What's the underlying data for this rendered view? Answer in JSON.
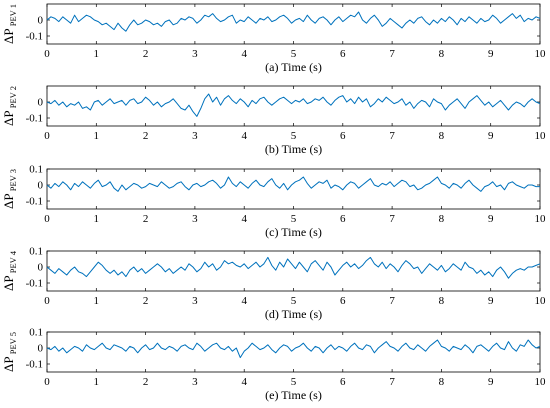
{
  "chart_data": [
    {
      "type": "line",
      "panel": "PEV1",
      "caption": "(a) Time (s)",
      "ylabel": "ΔP",
      "ylabel_subscript": "PEV1",
      "xlim": [
        0,
        10
      ],
      "ylim": [
        -0.15,
        0.1
      ],
      "xticks": [
        "0",
        "1",
        "2",
        "3",
        "4",
        "5",
        "6",
        "7",
        "8",
        "9",
        "10"
      ],
      "yticks": [
        "0",
        "-0.1"
      ],
      "series": [
        {
          "color": "#0072BD",
          "y": [
            0.0,
            0.02,
            0.01,
            -0.01,
            0.02,
            0.0,
            -0.02,
            0.03,
            -0.01,
            0.01,
            0.03,
            0.02,
            0.0,
            -0.01,
            -0.03,
            -0.02,
            -0.04,
            -0.06,
            -0.02,
            -0.05,
            -0.07,
            -0.03,
            0.0,
            -0.03,
            -0.02,
            0.0,
            -0.01,
            -0.03,
            -0.02,
            -0.04,
            -0.01,
            0.0,
            -0.03,
            -0.02,
            0.01,
            0.0,
            0.02,
            0.01,
            -0.02,
            0.0,
            0.03,
            0.02,
            0.04,
            0.01,
            -0.01,
            0.0,
            0.02,
            0.03,
            -0.02,
            0.0,
            -0.01,
            0.02,
            0.0,
            -0.02,
            0.01,
            0.0,
            0.02,
            -0.01,
            0.0,
            0.02,
            0.03,
            0.01,
            -0.02,
            0.0,
            0.01,
            -0.01,
            0.03,
            0.0,
            -0.02,
            0.01,
            0.02,
            0.0,
            -0.03,
            0.0,
            0.02,
            -0.01,
            0.01,
            0.03,
            0.02,
            0.05,
            0.0,
            -0.02,
            0.01,
            0.03,
            0.0,
            -0.04,
            -0.02,
            0.01,
            -0.01,
            -0.03,
            -0.05,
            -0.02,
            0.0,
            -0.02,
            0.01,
            0.02,
            -0.01,
            -0.03,
            0.0,
            -0.02,
            0.01,
            -0.01,
            0.02,
            0.0,
            -0.03,
            0.01,
            -0.01,
            0.02,
            0.0,
            -0.02,
            0.01,
            -0.01,
            0.0,
            0.03,
            0.01,
            -0.02,
            0.0,
            0.02,
            0.04,
            0.01,
            0.03,
            -0.01,
            0.01,
            0.0,
            0.02,
            0.01
          ]
        }
      ]
    },
    {
      "type": "line",
      "panel": "PEV2",
      "caption": "(b) Time (s)",
      "ylabel": "ΔP",
      "ylabel_subscript": "PEV2",
      "xlim": [
        0,
        10
      ],
      "ylim": [
        -0.15,
        0.1
      ],
      "xticks": [
        "0",
        "1",
        "2",
        "3",
        "4",
        "5",
        "6",
        "7",
        "8",
        "9",
        "10"
      ],
      "yticks": [
        "0",
        "-0.1"
      ],
      "series": [
        {
          "color": "#0072BD",
          "y": [
            0.0,
            -0.01,
            0.01,
            -0.02,
            0.0,
            -0.03,
            -0.01,
            -0.02,
            0.0,
            -0.04,
            -0.03,
            -0.05,
            0.0,
            0.01,
            -0.02,
            0.0,
            0.02,
            -0.01,
            0.0,
            0.01,
            -0.02,
            0.01,
            0.02,
            -0.01,
            0.0,
            0.03,
            0.01,
            -0.02,
            0.0,
            -0.03,
            -0.01,
            0.0,
            0.02,
            -0.01,
            -0.04,
            -0.05,
            -0.02,
            -0.06,
            -0.09,
            -0.04,
            0.02,
            0.05,
            0.0,
            0.03,
            -0.02,
            0.02,
            0.04,
            0.01,
            -0.01,
            0.02,
            0.0,
            -0.03,
            0.01,
            -0.01,
            0.02,
            0.03,
            0.0,
            -0.02,
            0.0,
            0.02,
            0.03,
            0.01,
            -0.01,
            0.01,
            0.0,
            0.02,
            -0.01,
            0.0,
            0.02,
            0.01,
            0.03,
            0.0,
            -0.02,
            0.01,
            0.03,
            0.04,
            0.0,
            0.02,
            -0.01,
            0.03,
            0.0,
            0.02,
            -0.03,
            -0.01,
            0.02,
            0.0,
            0.03,
            0.01,
            -0.01,
            0.0,
            0.02,
            -0.02,
            0.0,
            -0.04,
            -0.01,
            0.01,
            0.0,
            -0.03,
            0.02,
            0.0,
            -0.01,
            -0.05,
            -0.02,
            0.0,
            0.02,
            -0.01,
            -0.04,
            0.0,
            0.02,
            0.04,
            0.01,
            -0.02,
            0.0,
            -0.03,
            -0.01,
            0.01,
            -0.02,
            -0.05,
            -0.02,
            0.0,
            -0.01,
            -0.03,
            0.0,
            0.02,
            0.0,
            -0.01
          ]
        }
      ]
    },
    {
      "type": "line",
      "panel": "PEV3",
      "caption": "(c) Time (s)",
      "ylabel": "ΔP",
      "ylabel_subscript": "PEV3",
      "xlim": [
        0,
        10
      ],
      "ylim": [
        -0.15,
        0.1
      ],
      "xticks": [
        "0",
        "1",
        "2",
        "3",
        "4",
        "5",
        "6",
        "7",
        "8",
        "9",
        "10"
      ],
      "yticks": [
        "0.1",
        "0",
        "-0.1"
      ],
      "series": [
        {
          "color": "#0072BD",
          "y": [
            0.0,
            -0.02,
            0.01,
            -0.01,
            0.02,
            0.0,
            -0.03,
            0.01,
            -0.01,
            0.02,
            0.0,
            -0.02,
            0.01,
            0.03,
            -0.01,
            0.0,
            0.02,
            -0.02,
            -0.04,
            0.0,
            -0.03,
            -0.01,
            0.01,
            0.0,
            -0.02,
            -0.01,
            0.01,
            0.0,
            -0.01,
            0.02,
            0.0,
            -0.02,
            -0.01,
            0.01,
            0.02,
            -0.01,
            -0.03,
            0.0,
            0.01,
            -0.01,
            0.0,
            0.02,
            0.03,
            0.01,
            -0.02,
            0.0,
            0.05,
            0.01,
            -0.01,
            0.02,
            0.0,
            -0.02,
            0.01,
            0.03,
            0.0,
            -0.01,
            0.02,
            0.04,
            0.0,
            -0.02,
            0.01,
            -0.03,
            0.0,
            0.02,
            0.03,
            0.05,
            0.01,
            -0.02,
            0.0,
            0.02,
            0.01,
            0.03,
            -0.02,
            0.0,
            -0.01,
            -0.03,
            0.0,
            0.02,
            0.01,
            -0.02,
            0.0,
            0.02,
            0.04,
            0.0,
            -0.01,
            0.01,
            0.0,
            0.02,
            -0.01,
            0.01,
            0.03,
            0.02,
            -0.01,
            0.0,
            -0.03,
            -0.02,
            0.0,
            0.01,
            0.03,
            0.05,
            0.01,
            0.0,
            -0.02,
            0.01,
            0.0,
            -0.02,
            0.01,
            0.03,
            0.0,
            -0.02,
            -0.04,
            -0.01,
            0.0,
            0.02,
            -0.01,
            0.0,
            -0.03,
            0.01,
            0.02,
            0.0,
            -0.01,
            -0.02,
            0.0,
            0.0,
            -0.01,
            -0.01
          ]
        }
      ]
    },
    {
      "type": "line",
      "panel": "PEV4",
      "caption": "(d) Time (s)",
      "ylabel": "ΔP",
      "ylabel_subscript": "PEV4",
      "xlim": [
        0,
        10
      ],
      "ylim": [
        -0.15,
        0.1
      ],
      "xticks": [
        "0",
        "1",
        "2",
        "3",
        "4",
        "5",
        "6",
        "7",
        "8",
        "9",
        "10"
      ],
      "yticks": [
        "0.1",
        "0",
        "-0.1"
      ],
      "series": [
        {
          "color": "#0072BD",
          "y": [
            0.0,
            -0.02,
            -0.04,
            -0.01,
            -0.03,
            -0.05,
            -0.02,
            0.0,
            -0.03,
            -0.04,
            -0.06,
            -0.03,
            0.0,
            0.03,
            0.01,
            -0.02,
            -0.04,
            -0.02,
            -0.05,
            -0.03,
            -0.06,
            -0.02,
            0.0,
            -0.03,
            -0.01,
            -0.04,
            -0.02,
            0.0,
            0.02,
            0.0,
            -0.03,
            -0.01,
            -0.04,
            -0.02,
            0.0,
            -0.02,
            0.02,
            0.0,
            -0.03,
            -0.01,
            0.03,
            0.0,
            0.02,
            -0.02,
            0.0,
            0.04,
            0.02,
            0.03,
            0.01,
            0.0,
            0.02,
            -0.01,
            0.01,
            0.03,
            0.0,
            0.02,
            0.06,
            0.01,
            -0.02,
            0.03,
            0.0,
            0.05,
            0.02,
            -0.01,
            0.03,
            0.0,
            -0.03,
            0.02,
            0.04,
            0.01,
            -0.02,
            0.03,
            0.0,
            -0.05,
            -0.02,
            0.01,
            0.03,
            0.0,
            0.02,
            -0.01,
            0.01,
            0.04,
            0.06,
            0.02,
            0.0,
            0.03,
            -0.01,
            0.02,
            0.0,
            -0.03,
            0.01,
            0.04,
            0.02,
            -0.01,
            0.0,
            -0.04,
            -0.01,
            0.02,
            0.0,
            -0.02,
            0.01,
            -0.03,
            -0.01,
            0.02,
            0.0,
            -0.02,
            0.03,
            0.0,
            -0.01,
            -0.04,
            -0.02,
            -0.05,
            -0.03,
            -0.06,
            -0.02,
            0.0,
            -0.03,
            -0.07,
            -0.04,
            -0.02,
            -0.01,
            -0.02,
            0.0,
            0.0,
            0.01,
            0.02
          ]
        }
      ]
    },
    {
      "type": "line",
      "panel": "PEV5",
      "caption": "(e) Time (s)",
      "ylabel": "ΔP",
      "ylabel_subscript": "PEV5",
      "xlim": [
        0,
        10
      ],
      "ylim": [
        -0.15,
        0.1
      ],
      "xticks": [
        "0",
        "1",
        "2",
        "3",
        "4",
        "5",
        "6",
        "7",
        "8",
        "9",
        "10"
      ],
      "yticks": [
        "0.1",
        "0",
        "-0.1"
      ],
      "series": [
        {
          "color": "#0072BD",
          "y": [
            0.0,
            -0.01,
            0.01,
            -0.02,
            0.0,
            -0.03,
            -0.01,
            0.01,
            0.0,
            -0.02,
            0.02,
            0.0,
            -0.01,
            0.01,
            0.03,
            0.0,
            -0.01,
            0.02,
            0.01,
            0.0,
            -0.02,
            0.01,
            0.0,
            -0.03,
            0.0,
            0.02,
            -0.01,
            0.0,
            0.03,
            0.0,
            -0.01,
            0.01,
            0.0,
            -0.02,
            0.01,
            0.02,
            0.0,
            -0.01,
            0.03,
            0.01,
            -0.02,
            0.0,
            0.02,
            0.03,
            0.0,
            -0.01,
            0.01,
            -0.02,
            0.0,
            -0.06,
            -0.02,
            0.0,
            0.03,
            0.01,
            -0.01,
            0.0,
            0.02,
            -0.01,
            -0.03,
            0.0,
            0.02,
            0.01,
            -0.02,
            0.0,
            0.01,
            0.03,
            0.0,
            -0.02,
            0.01,
            0.0,
            -0.03,
            0.0,
            0.02,
            -0.01,
            0.01,
            0.0,
            -0.02,
            0.01,
            0.03,
            0.0,
            -0.01,
            0.02,
            0.01,
            -0.03,
            0.0,
            0.02,
            0.04,
            0.01,
            0.0,
            -0.02,
            0.01,
            0.03,
            0.0,
            -0.01,
            0.02,
            0.0,
            -0.02,
            0.01,
            0.03,
            0.05,
            0.01,
            0.0,
            -0.02,
            0.01,
            0.0,
            -0.01,
            0.02,
            0.0,
            -0.03,
            0.01,
            0.02,
            0.0,
            -0.02,
            0.01,
            0.03,
            0.0,
            -0.01,
            0.04,
            0.0,
            -0.02,
            0.02,
            0.01,
            0.05,
            0.02,
            0.0,
            0.01
          ]
        }
      ]
    }
  ]
}
